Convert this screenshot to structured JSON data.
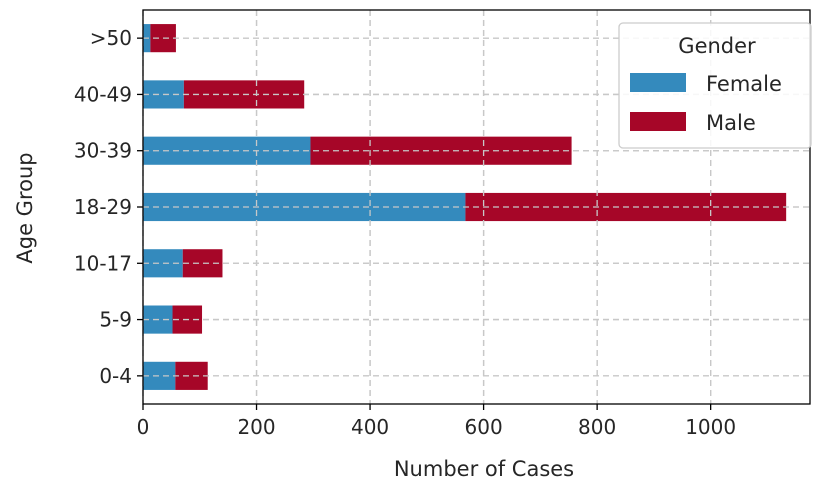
{
  "chart_data": {
    "type": "bar",
    "orientation": "horizontal",
    "stacked": true,
    "categories": [
      "0-4",
      "5-9",
      "10-17",
      "18-29",
      "30-39",
      "40-49",
      ">50"
    ],
    "series": [
      {
        "name": "Female",
        "color": "#348abd",
        "values": [
          57,
          52,
          70,
          568,
          295,
          72,
          13
        ]
      },
      {
        "name": "Male",
        "color": "#a60628",
        "values": [
          57,
          52,
          70,
          565,
          460,
          212,
          45
        ]
      }
    ],
    "xlabel": "Number of Cases",
    "ylabel": "Age Group",
    "xlim": [
      0,
      1175
    ],
    "xticks": [
      0,
      200,
      400,
      600,
      800,
      1000
    ],
    "grid": true,
    "legend": {
      "title": "Gender",
      "placement": "top-right"
    }
  }
}
